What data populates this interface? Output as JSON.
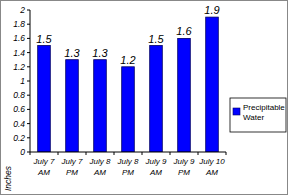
{
  "chart_data": {
    "type": "bar",
    "categories": [
      "July 7 AM",
      "July 7 PM",
      "July 8 AM",
      "July 8 PM",
      "July 9 AM",
      "July 9 PM",
      "July 10 AM"
    ],
    "series": [
      {
        "name": "Precipitable Water",
        "color": "#0000ff",
        "values": [
          1.5,
          1.3,
          1.3,
          1.2,
          1.5,
          1.6,
          1.9
        ]
      }
    ],
    "y_label": "Inches",
    "ylim": [
      0,
      2
    ],
    "yticks": [
      0,
      0.2,
      0.4,
      0.6,
      0.8,
      1,
      1.2,
      1.4,
      1.6,
      1.8,
      2
    ],
    "grid": false,
    "data_labels": true,
    "legend": "right"
  }
}
